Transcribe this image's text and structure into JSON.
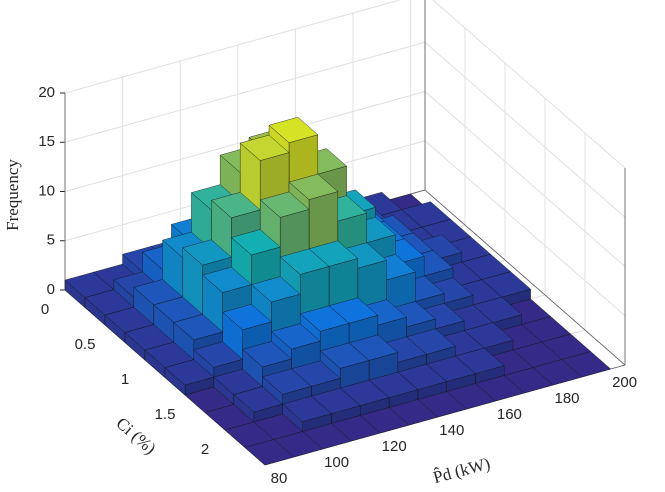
{
  "chart_data": {
    "type": "bar3",
    "xlabel": "P̂d (kW)",
    "ylabel": "Ci (%)",
    "zlabel": "Frequency",
    "xbins": [
      80,
      90,
      100,
      110,
      120,
      130,
      140,
      150,
      160,
      170,
      180,
      190,
      200
    ],
    "ybins": [
      0,
      0.25,
      0.5,
      0.75,
      1,
      1.25,
      1.5,
      1.75,
      2,
      2.25,
      2.5
    ],
    "values": [
      [
        1,
        1,
        2,
        2,
        3,
        3,
        3,
        2,
        2,
        1,
        1,
        0
      ],
      [
        1,
        2,
        4,
        6,
        8,
        8,
        7,
        6,
        4,
        2,
        1,
        1
      ],
      [
        1,
        3,
        7,
        11,
        14,
        15,
        12,
        8,
        5,
        3,
        1,
        1
      ],
      [
        1,
        3,
        8,
        12,
        17,
        18,
        14,
        9,
        5,
        3,
        2,
        1
      ],
      [
        1,
        3,
        7,
        10,
        13,
        14,
        11,
        8,
        5,
        3,
        1,
        1
      ],
      [
        1,
        2,
        5,
        7,
        9,
        9,
        8,
        6,
        3,
        2,
        1,
        1
      ],
      [
        0,
        1,
        3,
        4,
        5,
        5,
        4,
        3,
        2,
        1,
        1,
        0
      ],
      [
        0,
        1,
        2,
        2,
        3,
        3,
        2,
        2,
        1,
        1,
        0,
        0
      ],
      [
        0,
        0,
        1,
        1,
        1,
        1,
        1,
        1,
        1,
        0,
        0,
        0
      ],
      [
        0,
        0,
        0,
        0,
        0,
        0,
        0,
        0,
        0,
        0,
        0,
        0
      ]
    ],
    "xlim": [
      80,
      205
    ],
    "ylim": [
      0,
      2.5
    ],
    "zlim": [
      0,
      20
    ],
    "xticks": [
      80,
      100,
      120,
      140,
      160,
      180,
      200
    ],
    "yticks": [
      0,
      0.5,
      1,
      1.5,
      2
    ],
    "zticks": [
      0,
      5,
      10,
      15,
      20
    ],
    "colormap": "parula",
    "grid": true
  }
}
